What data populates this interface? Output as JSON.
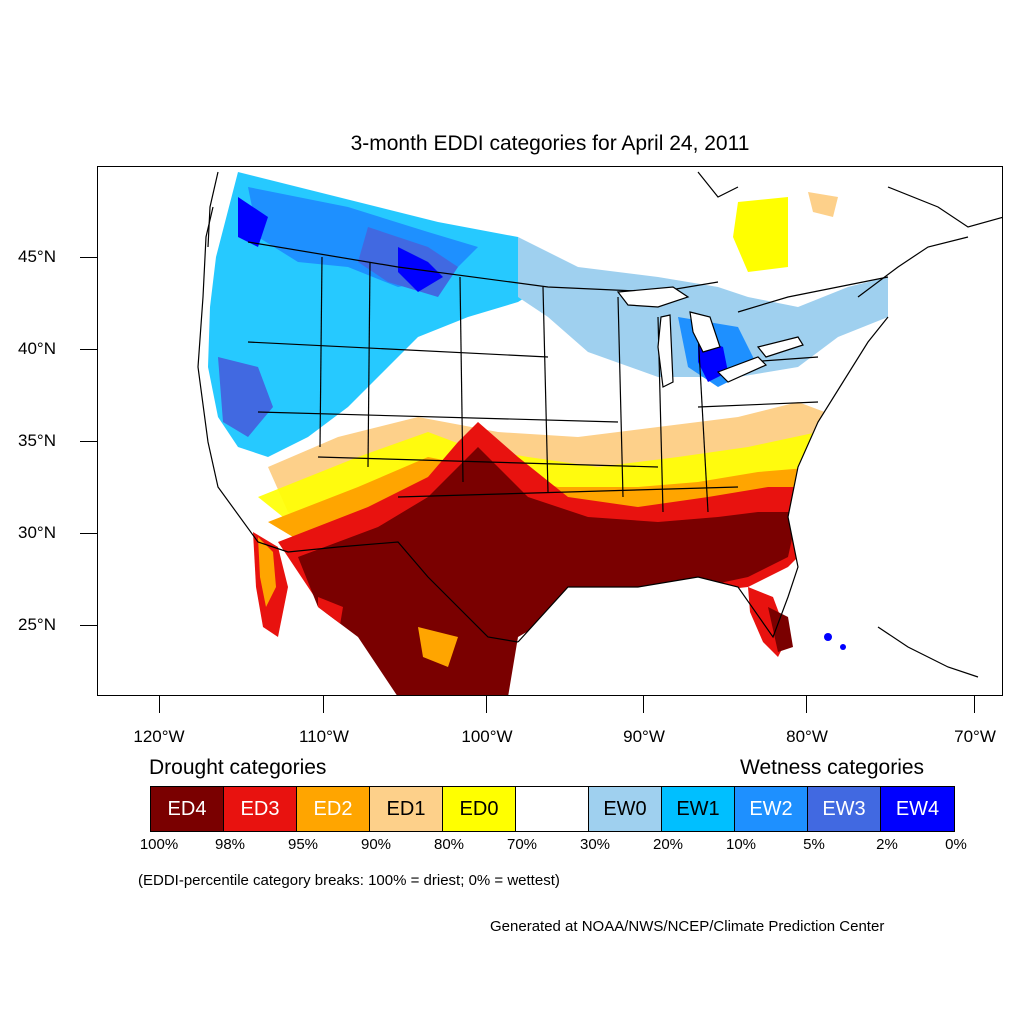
{
  "title": "3-month EDDI categories for April 24, 2011",
  "lat_labels": [
    "45°N",
    "40°N",
    "35°N",
    "30°N",
    "25°N"
  ],
  "lon_labels": [
    "120°W",
    "110°W",
    "100°W",
    "90°W",
    "80°W",
    "70°W"
  ],
  "legend": {
    "drought_title": "Drought categories",
    "wetness_title": "Wetness categories",
    "categories": [
      {
        "label": "ED4",
        "color": "#7a0000",
        "text_color": "#ffffff"
      },
      {
        "label": "ED3",
        "color": "#e8120f",
        "text_color": "#ffffff"
      },
      {
        "label": "ED2",
        "color": "#ffa500",
        "text_color": "#ffffff"
      },
      {
        "label": "ED1",
        "color": "#fdd08a",
        "text_color": "#000000"
      },
      {
        "label": "ED0",
        "color": "#ffff00",
        "text_color": "#000000"
      },
      {
        "label": "",
        "color": "#ffffff",
        "text_color": "#000000"
      },
      {
        "label": "EW0",
        "color": "#9fd0ef",
        "text_color": "#000000"
      },
      {
        "label": "EW1",
        "color": "#00bfff",
        "text_color": "#000000"
      },
      {
        "label": "EW2",
        "color": "#1e90ff",
        "text_color": "#ffffff"
      },
      {
        "label": "EW3",
        "color": "#4169e1",
        "text_color": "#ffffff"
      },
      {
        "label": "EW4",
        "color": "#0000ff",
        "text_color": "#ffffff"
      }
    ],
    "breaks": [
      "100%",
      "98%",
      "95%",
      "90%",
      "80%",
      "70%",
      "30%",
      "20%",
      "10%",
      "5%",
      "2%",
      "0%"
    ]
  },
  "note": "(EDDI-percentile category breaks: 100% = driest; 0% = wettest)",
  "credit": "Generated at NOAA/NWS/NCEP/Climate Prediction Center"
}
